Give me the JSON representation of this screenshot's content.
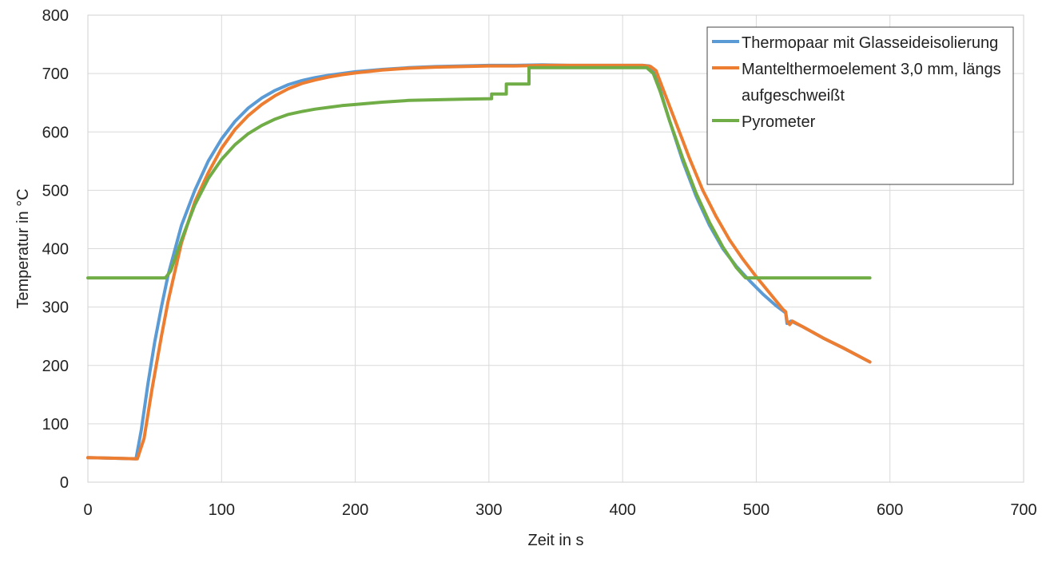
{
  "chart_data": {
    "type": "line",
    "title": "",
    "xlabel": "Zeit in s",
    "ylabel": "Temperatur in °C",
    "xlim": [
      0,
      700
    ],
    "ylim": [
      0,
      800
    ],
    "xticks": [
      0,
      100,
      200,
      300,
      400,
      500,
      600,
      700
    ],
    "yticks": [
      0,
      100,
      200,
      300,
      400,
      500,
      600,
      700,
      800
    ],
    "grid": true,
    "legend": "top-right",
    "series": [
      {
        "name": "Thermopaar mit Glasseideisolierung",
        "color": "#5b9bd5",
        "points": [
          [
            0,
            42
          ],
          [
            20,
            41
          ],
          [
            36,
            40
          ],
          [
            40,
            90
          ],
          [
            45,
            170
          ],
          [
            50,
            240
          ],
          [
            55,
            300
          ],
          [
            60,
            355
          ],
          [
            70,
            440
          ],
          [
            80,
            500
          ],
          [
            90,
            550
          ],
          [
            100,
            588
          ],
          [
            110,
            618
          ],
          [
            120,
            641
          ],
          [
            130,
            658
          ],
          [
            140,
            671
          ],
          [
            150,
            681
          ],
          [
            160,
            688
          ],
          [
            170,
            693
          ],
          [
            180,
            697
          ],
          [
            190,
            700
          ],
          [
            200,
            703
          ],
          [
            220,
            707
          ],
          [
            240,
            710
          ],
          [
            260,
            712
          ],
          [
            280,
            713
          ],
          [
            300,
            714
          ],
          [
            320,
            714
          ],
          [
            340,
            715
          ],
          [
            360,
            714
          ],
          [
            380,
            714
          ],
          [
            400,
            714
          ],
          [
            415,
            714
          ],
          [
            420,
            713
          ],
          [
            423,
            705
          ],
          [
            427,
            680
          ],
          [
            435,
            620
          ],
          [
            445,
            550
          ],
          [
            455,
            490
          ],
          [
            465,
            440
          ],
          [
            475,
            400
          ],
          [
            485,
            370
          ],
          [
            495,
            345
          ],
          [
            505,
            322
          ],
          [
            515,
            302
          ],
          [
            522,
            290
          ],
          [
            523,
            272
          ],
          [
            526,
            276
          ],
          [
            535,
            266
          ],
          [
            550,
            247
          ],
          [
            565,
            230
          ],
          [
            585,
            206
          ]
        ]
      },
      {
        "name": "Mantelthermoelement 3,0 mm, längs aufgeschweißt",
        "color": "#ed7d31",
        "points": [
          [
            0,
            42
          ],
          [
            20,
            41
          ],
          [
            37,
            40
          ],
          [
            42,
            75
          ],
          [
            48,
            160
          ],
          [
            55,
            250
          ],
          [
            60,
            310
          ],
          [
            65,
            360
          ],
          [
            70,
            410
          ],
          [
            80,
            480
          ],
          [
            90,
            530
          ],
          [
            100,
            572
          ],
          [
            110,
            604
          ],
          [
            120,
            628
          ],
          [
            130,
            647
          ],
          [
            140,
            662
          ],
          [
            150,
            674
          ],
          [
            160,
            683
          ],
          [
            170,
            689
          ],
          [
            180,
            694
          ],
          [
            190,
            698
          ],
          [
            200,
            701
          ],
          [
            220,
            706
          ],
          [
            240,
            709
          ],
          [
            260,
            711
          ],
          [
            280,
            712
          ],
          [
            300,
            713
          ],
          [
            320,
            713
          ],
          [
            340,
            714
          ],
          [
            360,
            714
          ],
          [
            380,
            714
          ],
          [
            400,
            714
          ],
          [
            415,
            714
          ],
          [
            421,
            712
          ],
          [
            425,
            705
          ],
          [
            430,
            675
          ],
          [
            440,
            615
          ],
          [
            450,
            555
          ],
          [
            460,
            500
          ],
          [
            470,
            455
          ],
          [
            480,
            415
          ],
          [
            490,
            382
          ],
          [
            500,
            352
          ],
          [
            510,
            324
          ],
          [
            520,
            296
          ],
          [
            522,
            292
          ],
          [
            523,
            276
          ],
          [
            525,
            270
          ],
          [
            527,
            276
          ],
          [
            535,
            266
          ],
          [
            550,
            247
          ],
          [
            565,
            230
          ],
          [
            585,
            206
          ]
        ]
      },
      {
        "name": "Pyrometer",
        "color": "#70ad47",
        "points": [
          [
            0,
            350
          ],
          [
            58,
            350
          ],
          [
            62,
            362
          ],
          [
            70,
            415
          ],
          [
            80,
            475
          ],
          [
            90,
            520
          ],
          [
            100,
            553
          ],
          [
            110,
            578
          ],
          [
            120,
            597
          ],
          [
            130,
            611
          ],
          [
            140,
            622
          ],
          [
            150,
            630
          ],
          [
            160,
            635
          ],
          [
            170,
            639
          ],
          [
            180,
            642
          ],
          [
            190,
            645
          ],
          [
            200,
            647
          ],
          [
            220,
            651
          ],
          [
            240,
            654
          ],
          [
            260,
            655
          ],
          [
            280,
            656
          ],
          [
            302,
            657
          ],
          [
            302,
            665
          ],
          [
            313,
            665
          ],
          [
            313,
            682
          ],
          [
            330,
            682
          ],
          [
            330,
            710
          ],
          [
            360,
            710
          ],
          [
            400,
            710
          ],
          [
            418,
            710
          ],
          [
            423,
            700
          ],
          [
            428,
            670
          ],
          [
            435,
            620
          ],
          [
            445,
            555
          ],
          [
            455,
            495
          ],
          [
            465,
            445
          ],
          [
            475,
            403
          ],
          [
            485,
            368
          ],
          [
            490,
            355
          ],
          [
            492,
            350
          ],
          [
            530,
            350
          ],
          [
            585,
            350
          ]
        ]
      }
    ]
  }
}
